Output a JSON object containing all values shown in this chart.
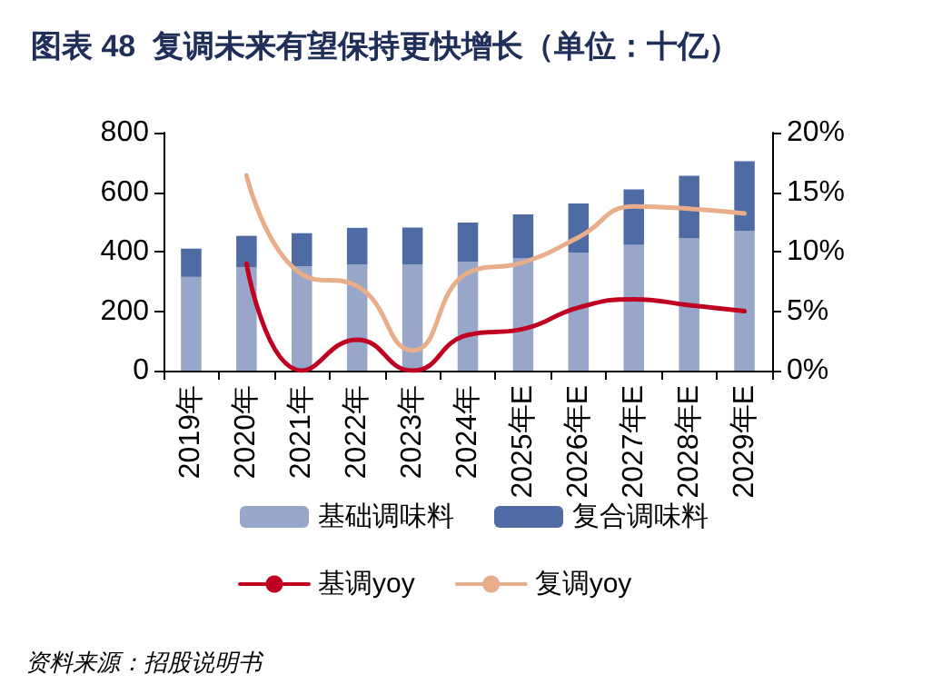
{
  "chart_data": {
    "type": "bar",
    "title": "图表 48  复调未来有望保持更快增长（单位：十亿）",
    "stacked": true,
    "categories": [
      "2019年",
      "2020年",
      "2021年",
      "2022年",
      "2023年",
      "2024年",
      "2025年E",
      "2026年E",
      "2027年E",
      "2028年E",
      "2029年E"
    ],
    "series": [
      {
        "name": "基础调味料",
        "color": "#97a6c9",
        "values": [
          315,
          348,
          350,
          356,
          356,
          366,
          377,
          397,
          423,
          446,
          470
        ]
      },
      {
        "name": "复合调味料",
        "color": "#4f6ba3",
        "values": [
          95,
          105,
          112,
          124,
          125,
          132,
          148,
          165,
          186,
          209,
          234
        ]
      },
      {
        "name": "基调yoy",
        "type": "line",
        "axis": "y2",
        "color": "#c00020",
        "values": [
          null,
          9.0,
          0.0,
          2.6,
          0.0,
          3.0,
          3.5,
          5.3,
          6.0,
          5.5,
          5.0
        ]
      },
      {
        "name": "复调yoy",
        "type": "line",
        "axis": "y2",
        "color": "#e8ad8a",
        "values": [
          null,
          16.4,
          8.1,
          7.1,
          1.7,
          8.2,
          9.1,
          11.2,
          13.8,
          13.6,
          13.2
        ]
      }
    ],
    "ylim": [
      0,
      800
    ],
    "yticks": [
      0,
      200,
      400,
      600,
      800
    ],
    "y2lim": [
      0,
      20
    ],
    "y2ticks": [
      {
        "value": 0,
        "label": "0%"
      },
      {
        "value": 5,
        "label": "5%"
      },
      {
        "value": 10,
        "label": "10%"
      },
      {
        "value": 15,
        "label": "15%"
      },
      {
        "value": 20,
        "label": "20%"
      }
    ],
    "grid": false,
    "legend": "bottom",
    "marker": "none",
    "line_style": "solid",
    "annotations": [
      "资料来源：招股说明书"
    ]
  }
}
